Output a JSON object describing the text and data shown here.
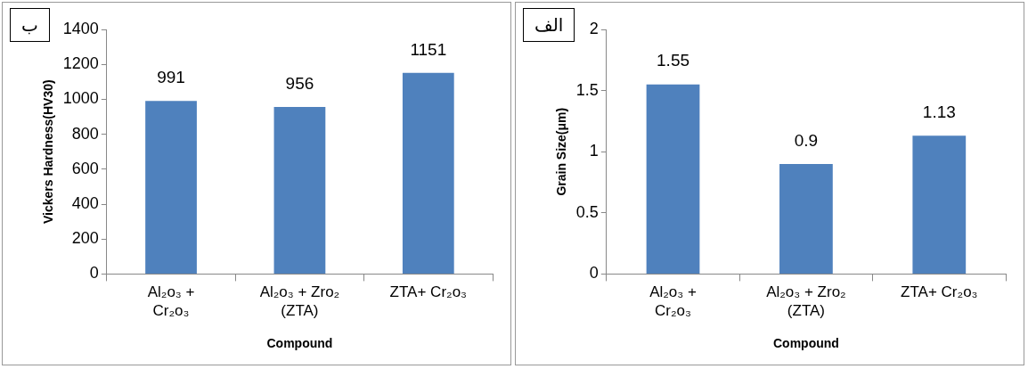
{
  "chart_data": [
    {
      "type": "bar",
      "annotations": [
        "ب"
      ],
      "xlabel": "Compound",
      "ylabel": "Vickers Hardness(HV30)",
      "categories": [
        "Al₂o₃ +\nCr₂o₃",
        "Al₂o₃ + Zro₂\n(ZTA)",
        "ZTA+ Cr₂o₃"
      ],
      "values": [
        991,
        956,
        1151
      ],
      "color": "#4f81bd",
      "ylim": [
        0,
        1400
      ],
      "yticks": [
        0,
        200,
        400,
        600,
        800,
        1000,
        1200,
        1400
      ],
      "grid": false,
      "data_labels": true
    },
    {
      "type": "bar",
      "annotations": [
        "الف"
      ],
      "xlabel": "Compound",
      "ylabel": "Grain Size(μm)",
      "categories": [
        "Al₂o₃ +\nCr₂o₃",
        "Al₂o₃ + Zro₂\n(ZTA)",
        "ZTA+ Cr₂o₃"
      ],
      "values": [
        1.55,
        0.9,
        1.13
      ],
      "color": "#4f81bd",
      "ylim": [
        0,
        2
      ],
      "yticks": [
        0,
        0.5,
        1,
        1.5,
        2
      ],
      "grid": false,
      "data_labels": true
    }
  ]
}
